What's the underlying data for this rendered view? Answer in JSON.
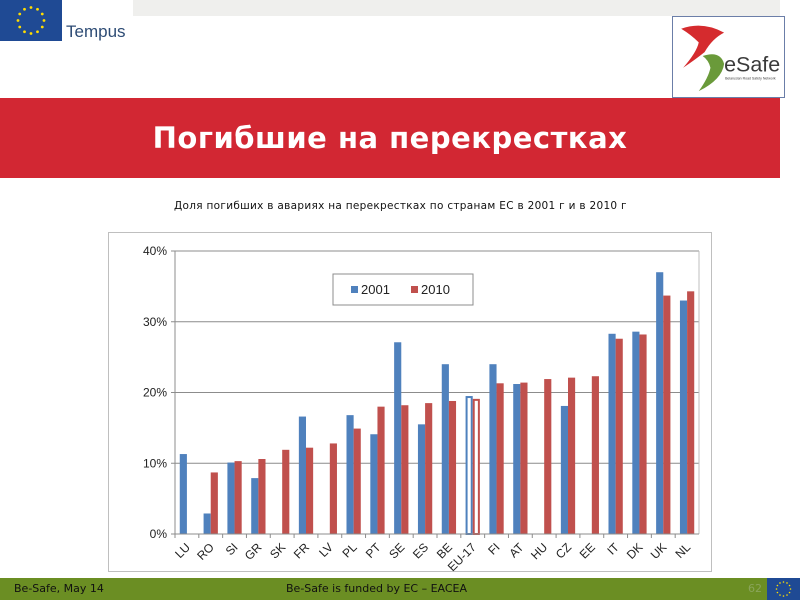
{
  "header": {
    "tempus_label": "Tempus",
    "esafe_logo_text": "eSafe",
    "esafe_logo_subtitle": "Belarusian Road Safety Network"
  },
  "slide": {
    "title": "Погибшие на перекрестках",
    "chart_caption": "Доля погибших в авариях на перекрестках по странам ЕС в 2001 г  и в 2010 г"
  },
  "footer": {
    "left": "Be-Safe, May 14",
    "center": "Be-Safe is funded by EC – EACEA",
    "page_number": "62"
  },
  "colors": {
    "title_band": "#d22733",
    "footer": "#6b8e23",
    "series_2001": "#4f81bd",
    "series_2010": "#c0504d",
    "eu_blue": "#1f4a94"
  },
  "chart_data": {
    "type": "bar",
    "title": "Доля погибших в авариях на перекрестках по странам ЕС в 2001 г  и в 2010 г",
    "xlabel": "",
    "ylabel": "",
    "ylim": [
      0,
      40
    ],
    "yticks": [
      "0%",
      "10%",
      "20%",
      "30%",
      "40%"
    ],
    "grid": true,
    "legend_position": "top-center (inside plot)",
    "categories": [
      "LU",
      "RO",
      "SI",
      "GR",
      "SK",
      "FR",
      "LV",
      "PL",
      "PT",
      "SE",
      "ES",
      "BE",
      "EU-17",
      "FI",
      "AT",
      "HU",
      "CZ",
      "EE",
      "IT",
      "DK",
      "UK",
      "NL"
    ],
    "series": [
      {
        "name": "2001",
        "color": "#4f81bd",
        "values": [
          11.3,
          2.9,
          10.1,
          7.9,
          null,
          16.6,
          null,
          16.8,
          14.1,
          27.1,
          15.5,
          24.0,
          19.5,
          24.0,
          21.2,
          null,
          18.1,
          null,
          28.3,
          28.6,
          37.0,
          33.0
        ]
      },
      {
        "name": "2010",
        "color": "#c0504d",
        "values": [
          null,
          8.7,
          10.3,
          10.6,
          11.9,
          12.2,
          12.8,
          14.9,
          18.0,
          18.2,
          18.5,
          18.8,
          19.1,
          21.3,
          21.4,
          21.9,
          22.1,
          22.3,
          27.6,
          28.2,
          33.7,
          34.3
        ]
      }
    ],
    "annotations": [
      "EU-17 bars drawn as hollow outlines"
    ]
  }
}
